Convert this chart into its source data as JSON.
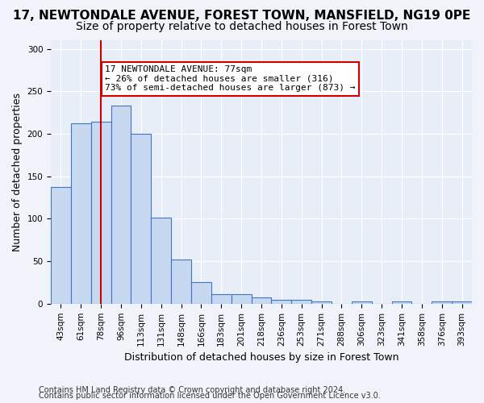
{
  "title": "17, NEWTONDALE AVENUE, FOREST TOWN, MANSFIELD, NG19 0PE",
  "subtitle": "Size of property relative to detached houses in Forest Town",
  "xlabel": "Distribution of detached houses by size in Forest Town",
  "ylabel": "Number of detached properties",
  "footnote1": "Contains HM Land Registry data © Crown copyright and database right 2024.",
  "footnote2": "Contains public sector information licensed under the Open Government Licence v3.0.",
  "bin_labels": [
    "43sqm",
    "61sqm",
    "78sqm",
    "96sqm",
    "113sqm",
    "131sqm",
    "148sqm",
    "166sqm",
    "183sqm",
    "201sqm",
    "218sqm",
    "236sqm",
    "253sqm",
    "271sqm",
    "288sqm",
    "306sqm",
    "323sqm",
    "341sqm",
    "358sqm",
    "376sqm",
    "393sqm"
  ],
  "bar_values": [
    137,
    212,
    214,
    233,
    200,
    101,
    52,
    25,
    11,
    11,
    7,
    5,
    5,
    3,
    0,
    3,
    0,
    3,
    0,
    3,
    3
  ],
  "bar_color": "#c6d9f0",
  "bar_edge_color": "#4472c4",
  "vline_x": 2,
  "vline_color": "#cc0000",
  "annotation_text": "17 NEWTONDALE AVENUE: 77sqm\n← 26% of detached houses are smaller (316)\n73% of semi-detached houses are larger (873) →",
  "annotation_box_color": "#ffffff",
  "annotation_box_edge": "#cc0000",
  "ylim": [
    0,
    310
  ],
  "yticks": [
    0,
    50,
    100,
    150,
    200,
    250,
    300
  ],
  "background_color": "#e8eef7",
  "grid_color": "#ffffff",
  "title_fontsize": 11,
  "subtitle_fontsize": 10,
  "annotation_fontsize": 8.0,
  "tick_fontsize": 7.5,
  "label_fontsize": 9,
  "footnote_fontsize": 7
}
